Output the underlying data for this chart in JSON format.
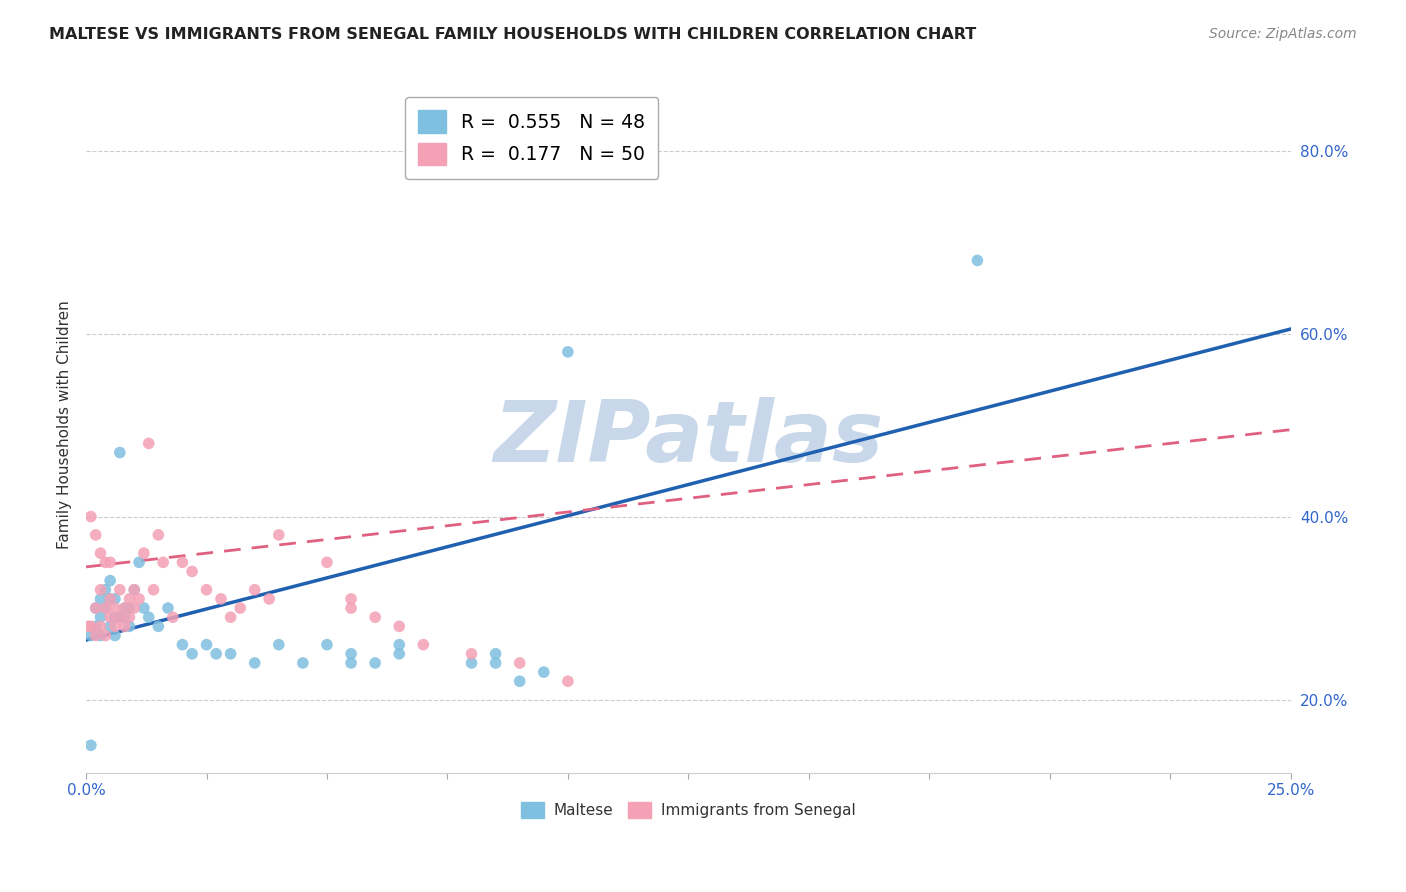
{
  "title": "MALTESE VS IMMIGRANTS FROM SENEGAL FAMILY HOUSEHOLDS WITH CHILDREN CORRELATION CHART",
  "source": "Source: ZipAtlas.com",
  "ylabel": "Family Households with Children",
  "xlim": [
    0.0,
    0.25
  ],
  "ylim": [
    0.12,
    0.88
  ],
  "xticks": [
    0.0,
    0.025,
    0.05,
    0.075,
    0.1,
    0.125,
    0.15,
    0.175,
    0.2,
    0.225,
    0.25
  ],
  "yticks_right": [
    0.2,
    0.4,
    0.6,
    0.8
  ],
  "ytick_labels_right": [
    "20.0%",
    "40.0%",
    "60.0%",
    "80.0%"
  ],
  "maltese_color": "#7fbfdf",
  "senegal_color": "#f4a0b5",
  "maltese_line_color": "#2060b0",
  "senegal_line_color": "#e06080",
  "maltese_R": 0.555,
  "maltese_N": 48,
  "senegal_R": 0.177,
  "senegal_N": 50,
  "watermark": "ZIPatlas",
  "watermark_color": "#c8d8ea",
  "legend_label1": "Maltese",
  "legend_label2": "Immigrants from Senegal",
  "maltese_line_x0": 0.0,
  "maltese_line_y0": 0.265,
  "maltese_line_x1": 0.25,
  "maltese_line_y1": 0.605,
  "senegal_line_x0": 0.0,
  "senegal_line_y0": 0.345,
  "senegal_line_x1": 0.25,
  "senegal_line_y1": 0.495,
  "maltese_x": [
    0.001,
    0.001,
    0.002,
    0.002,
    0.003,
    0.003,
    0.003,
    0.004,
    0.004,
    0.005,
    0.005,
    0.005,
    0.006,
    0.006,
    0.006,
    0.007,
    0.007,
    0.008,
    0.008,
    0.009,
    0.009,
    0.01,
    0.011,
    0.012,
    0.013,
    0.015,
    0.017,
    0.02,
    0.022,
    0.025,
    0.027,
    0.03,
    0.035,
    0.04,
    0.045,
    0.05,
    0.055,
    0.055,
    0.06,
    0.065,
    0.065,
    0.08,
    0.085,
    0.085,
    0.09,
    0.095,
    0.1,
    0.185
  ],
  "maltese_y": [
    0.27,
    0.15,
    0.3,
    0.28,
    0.31,
    0.27,
    0.29,
    0.3,
    0.32,
    0.28,
    0.31,
    0.33,
    0.29,
    0.31,
    0.27,
    0.29,
    0.47,
    0.3,
    0.29,
    0.28,
    0.3,
    0.32,
    0.35,
    0.3,
    0.29,
    0.28,
    0.3,
    0.26,
    0.25,
    0.26,
    0.25,
    0.25,
    0.24,
    0.26,
    0.24,
    0.26,
    0.24,
    0.25,
    0.24,
    0.26,
    0.25,
    0.24,
    0.24,
    0.25,
    0.22,
    0.23,
    0.58,
    0.68
  ],
  "senegal_x": [
    0.0005,
    0.001,
    0.001,
    0.002,
    0.002,
    0.002,
    0.003,
    0.003,
    0.003,
    0.004,
    0.004,
    0.004,
    0.005,
    0.005,
    0.005,
    0.006,
    0.006,
    0.007,
    0.007,
    0.008,
    0.008,
    0.009,
    0.009,
    0.01,
    0.01,
    0.011,
    0.012,
    0.013,
    0.014,
    0.015,
    0.016,
    0.018,
    0.02,
    0.022,
    0.025,
    0.028,
    0.03,
    0.032,
    0.035,
    0.038,
    0.04,
    0.05,
    0.055,
    0.055,
    0.06,
    0.065,
    0.07,
    0.08,
    0.09,
    0.1
  ],
  "senegal_y": [
    0.28,
    0.4,
    0.28,
    0.27,
    0.3,
    0.38,
    0.28,
    0.32,
    0.36,
    0.27,
    0.3,
    0.35,
    0.29,
    0.31,
    0.35,
    0.28,
    0.3,
    0.29,
    0.32,
    0.3,
    0.28,
    0.31,
    0.29,
    0.3,
    0.32,
    0.31,
    0.36,
    0.48,
    0.32,
    0.38,
    0.35,
    0.29,
    0.35,
    0.34,
    0.32,
    0.31,
    0.29,
    0.3,
    0.32,
    0.31,
    0.38,
    0.35,
    0.3,
    0.31,
    0.29,
    0.28,
    0.26,
    0.25,
    0.24,
    0.22
  ]
}
